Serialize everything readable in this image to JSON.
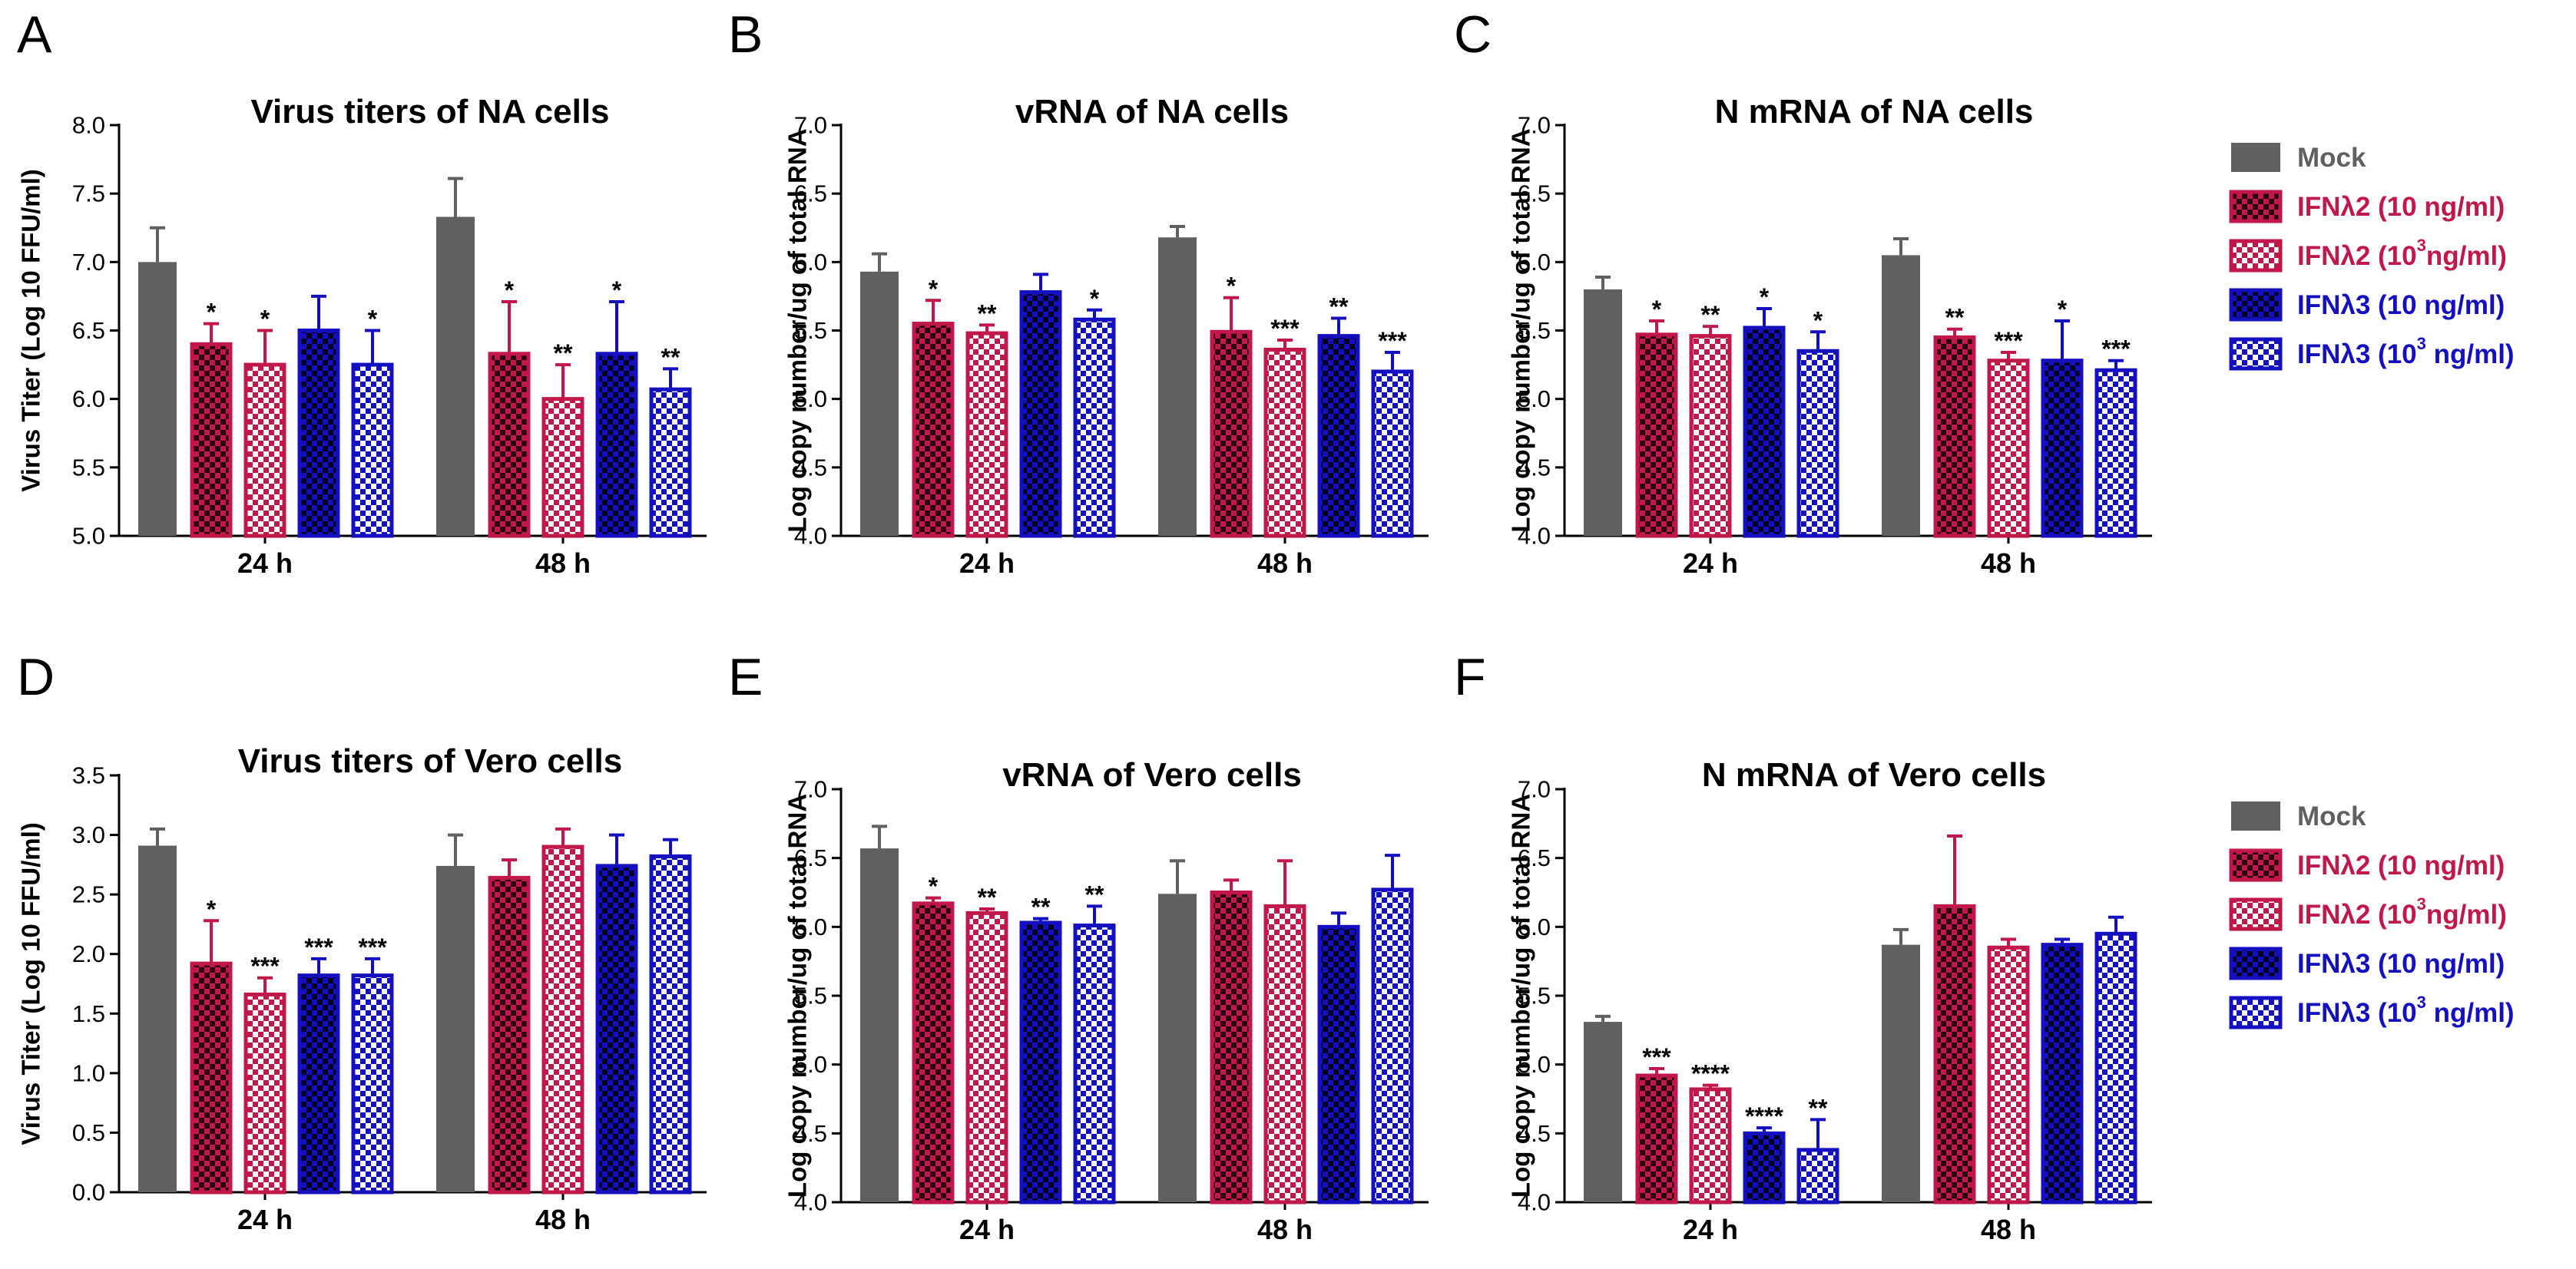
{
  "colors": {
    "mock": "#606060",
    "ifnl2": "#c0184a",
    "ifnl3": "#1410c0",
    "ifnl2_dark": "#2a0010",
    "ifnl3_dark": "#02001e"
  },
  "legends": [
    {
      "items": [
        {
          "label": "Mock",
          "style": "mock"
        },
        {
          "label": "IFNλ2 (10 ng/ml)",
          "style": "ifnl2_dark"
        },
        {
          "label": "IFNλ2 (10",
          "sup": "3",
          "tail": "ng/ml)",
          "style": "ifnl2_light"
        },
        {
          "label": "IFNλ3 (10 ng/ml)",
          "style": "ifnl3_dark"
        },
        {
          "label": "IFNλ3 (10",
          "sup": "3",
          "tail": " ng/ml)",
          "style": "ifnl3_light"
        }
      ]
    },
    {
      "items": [
        {
          "label": "Mock",
          "style": "mock"
        },
        {
          "label": "IFNλ2 (10 ng/ml)",
          "style": "ifnl2_dark"
        },
        {
          "label": "IFNλ2 (10",
          "sup": "3",
          "tail": "ng/ml)",
          "style": "ifnl2_light"
        },
        {
          "label": "IFNλ3 (10 ng/ml)",
          "style": "ifnl3_dark"
        },
        {
          "label": "IFNλ3 (10",
          "sup": "3",
          "tail": " ng/ml)",
          "style": "ifnl3_light"
        }
      ]
    }
  ],
  "chart_data": [
    {
      "panel": "A",
      "type": "bar",
      "title": "Virus titers of NA cells",
      "ylabel": "Virus Titer (Log 10 FFU/ml)",
      "ylim": [
        5.0,
        8.0
      ],
      "ytick_step": 0.5,
      "ytick_decimals": 1,
      "categories": [
        "24 h",
        "48 h"
      ],
      "series": [
        {
          "name": "Mock",
          "style": "mock",
          "values": [
            7.0,
            7.33
          ],
          "errors": [
            0.25,
            0.28
          ],
          "sig": [
            "",
            ""
          ]
        },
        {
          "name": "IFNλ2 (10 ng/ml)",
          "style": "ifnl2_dark",
          "values": [
            6.4,
            6.33
          ],
          "errors": [
            0.15,
            0.38
          ],
          "sig": [
            "*",
            "*"
          ]
        },
        {
          "name": "IFNλ2 (10^3 ng/ml)",
          "style": "ifnl2_light",
          "values": [
            6.25,
            6.0
          ],
          "errors": [
            0.25,
            0.25
          ],
          "sig": [
            "*",
            "**"
          ]
        },
        {
          "name": "IFNλ3 (10 ng/ml)",
          "style": "ifnl3_dark",
          "values": [
            6.5,
            6.33
          ],
          "errors": [
            0.25,
            0.38
          ],
          "sig": [
            "",
            "*"
          ]
        },
        {
          "name": "IFNλ3 (10^3 ng/ml)",
          "style": "ifnl3_light",
          "values": [
            6.25,
            6.07
          ],
          "errors": [
            0.25,
            0.15
          ],
          "sig": [
            "*",
            "**"
          ]
        }
      ]
    },
    {
      "panel": "B",
      "type": "bar",
      "title": "vRNA of NA cells",
      "ylabel": "Log copy number/ug of total RNA",
      "ylim": [
        4.0,
        7.0
      ],
      "ytick_step": 0.5,
      "ytick_decimals": 1,
      "categories": [
        "24 h",
        "48 h"
      ],
      "series": [
        {
          "name": "Mock",
          "style": "mock",
          "values": [
            5.93,
            6.18
          ],
          "errors": [
            0.13,
            0.08
          ],
          "sig": [
            "",
            ""
          ]
        },
        {
          "name": "IFNλ2 (10 ng/ml)",
          "style": "ifnl2_dark",
          "values": [
            5.55,
            5.49
          ],
          "errors": [
            0.17,
            0.25
          ],
          "sig": [
            "*",
            "*"
          ]
        },
        {
          "name": "IFNλ2 (10^3 ng/ml)",
          "style": "ifnl2_light",
          "values": [
            5.48,
            5.36
          ],
          "errors": [
            0.06,
            0.07
          ],
          "sig": [
            "**",
            "***"
          ]
        },
        {
          "name": "IFNλ3 (10 ng/ml)",
          "style": "ifnl3_dark",
          "values": [
            5.78,
            5.46
          ],
          "errors": [
            0.13,
            0.13
          ],
          "sig": [
            "",
            "**"
          ]
        },
        {
          "name": "IFNλ3 (10^3 ng/ml)",
          "style": "ifnl3_light",
          "values": [
            5.58,
            5.2
          ],
          "errors": [
            0.07,
            0.14
          ],
          "sig": [
            "*",
            "***"
          ]
        }
      ]
    },
    {
      "panel": "C",
      "type": "bar",
      "title": "N mRNA of NA cells",
      "ylabel": "Log copy number/ug of total RNA",
      "ylim": [
        4.0,
        7.0
      ],
      "ytick_step": 0.5,
      "ytick_decimals": 1,
      "categories": [
        "24 h",
        "48 h"
      ],
      "series": [
        {
          "name": "Mock",
          "style": "mock",
          "values": [
            5.8,
            6.05
          ],
          "errors": [
            0.09,
            0.12
          ],
          "sig": [
            "",
            ""
          ]
        },
        {
          "name": "IFNλ2 (10 ng/ml)",
          "style": "ifnl2_dark",
          "values": [
            5.47,
            5.45
          ],
          "errors": [
            0.1,
            0.06
          ],
          "sig": [
            "*",
            "**"
          ]
        },
        {
          "name": "IFNλ2 (10^3 ng/ml)",
          "style": "ifnl2_light",
          "values": [
            5.46,
            5.28
          ],
          "errors": [
            0.07,
            0.06
          ],
          "sig": [
            "**",
            "***"
          ]
        },
        {
          "name": "IFNλ3 (10 ng/ml)",
          "style": "ifnl3_dark",
          "values": [
            5.52,
            5.28
          ],
          "errors": [
            0.14,
            0.29
          ],
          "sig": [
            "*",
            "*"
          ]
        },
        {
          "name": "IFNλ3 (10^3 ng/ml)",
          "style": "ifnl3_light",
          "values": [
            5.35,
            5.21
          ],
          "errors": [
            0.14,
            0.07
          ],
          "sig": [
            "*",
            "***"
          ]
        }
      ]
    },
    {
      "panel": "D",
      "type": "bar",
      "title": "Virus titers of Vero cells",
      "ylabel": "Virus Titer (Log 10 FFU/ml)",
      "ylim": [
        0.0,
        3.5
      ],
      "ytick_step": 0.5,
      "ytick_decimals": 1,
      "categories": [
        "24 h",
        "48 h"
      ],
      "series": [
        {
          "name": "Mock",
          "style": "mock",
          "values": [
            2.91,
            2.74
          ],
          "errors": [
            0.14,
            0.26
          ],
          "sig": [
            "",
            ""
          ]
        },
        {
          "name": "IFNλ2 (10 ng/ml)",
          "style": "ifnl2_dark",
          "values": [
            1.92,
            2.64
          ],
          "errors": [
            0.36,
            0.15
          ],
          "sig": [
            "*",
            ""
          ]
        },
        {
          "name": "IFNλ2 (10^3 ng/ml)",
          "style": "ifnl2_light",
          "values": [
            1.66,
            2.9
          ],
          "errors": [
            0.14,
            0.15
          ],
          "sig": [
            "***",
            ""
          ]
        },
        {
          "name": "IFNλ3 (10 ng/ml)",
          "style": "ifnl3_dark",
          "values": [
            1.82,
            2.74
          ],
          "errors": [
            0.14,
            0.26
          ],
          "sig": [
            "***",
            ""
          ]
        },
        {
          "name": "IFNλ3 (10^3 ng/ml)",
          "style": "ifnl3_light",
          "values": [
            1.82,
            2.82
          ],
          "errors": [
            0.14,
            0.14
          ],
          "sig": [
            "***",
            ""
          ]
        }
      ]
    },
    {
      "panel": "E",
      "type": "bar",
      "title": "vRNA of Vero cells",
      "ylabel": "Log copy number/ug of total RNA",
      "ylim": [
        4.0,
        7.0
      ],
      "ytick_step": 0.5,
      "ytick_decimals": 1,
      "categories": [
        "24 h",
        "48 h"
      ],
      "series": [
        {
          "name": "Mock",
          "style": "mock",
          "values": [
            6.57,
            6.24
          ],
          "errors": [
            0.16,
            0.24
          ],
          "sig": [
            "",
            ""
          ]
        },
        {
          "name": "IFNλ2 (10 ng/ml)",
          "style": "ifnl2_dark",
          "values": [
            6.17,
            6.25
          ],
          "errors": [
            0.04,
            0.09
          ],
          "sig": [
            "*",
            ""
          ]
        },
        {
          "name": "IFNλ2 (10^3 ng/ml)",
          "style": "ifnl2_light",
          "values": [
            6.1,
            6.15
          ],
          "errors": [
            0.03,
            0.33
          ],
          "sig": [
            "**",
            ""
          ]
        },
        {
          "name": "IFNλ3 (10 ng/ml)",
          "style": "ifnl3_dark",
          "values": [
            6.03,
            6.0
          ],
          "errors": [
            0.03,
            0.1
          ],
          "sig": [
            "**",
            ""
          ]
        },
        {
          "name": "IFNλ3 (10^3 ng/ml)",
          "style": "ifnl3_light",
          "values": [
            6.01,
            6.27
          ],
          "errors": [
            0.14,
            0.25
          ],
          "sig": [
            "**",
            ""
          ]
        }
      ]
    },
    {
      "panel": "F",
      "type": "bar",
      "title": "N mRNA of Vero cells",
      "ylabel": "Log copy number/ug of total RNA",
      "ylim": [
        4.0,
        7.0
      ],
      "ytick_step": 0.5,
      "ytick_decimals": 1,
      "categories": [
        "24 h",
        "48 h"
      ],
      "series": [
        {
          "name": "Mock",
          "style": "mock",
          "values": [
            5.31,
            5.87
          ],
          "errors": [
            0.04,
            0.11
          ],
          "sig": [
            "",
            ""
          ]
        },
        {
          "name": "IFNλ2 (10 ng/ml)",
          "style": "ifnl2_dark",
          "values": [
            4.92,
            6.15
          ],
          "errors": [
            0.05,
            0.51
          ],
          "sig": [
            "***",
            ""
          ]
        },
        {
          "name": "IFNλ2 (10^3 ng/ml)",
          "style": "ifnl2_light",
          "values": [
            4.82,
            5.85
          ],
          "errors": [
            0.03,
            0.06
          ],
          "sig": [
            "****",
            ""
          ]
        },
        {
          "name": "IFNλ3 (10 ng/ml)",
          "style": "ifnl3_dark",
          "values": [
            4.5,
            5.87
          ],
          "errors": [
            0.04,
            0.04
          ],
          "sig": [
            "****",
            ""
          ]
        },
        {
          "name": "IFNλ3 (10^3 ng/ml)",
          "style": "ifnl3_light",
          "values": [
            4.38,
            5.95
          ],
          "errors": [
            0.22,
            0.12
          ],
          "sig": [
            "**",
            ""
          ]
        }
      ]
    }
  ]
}
